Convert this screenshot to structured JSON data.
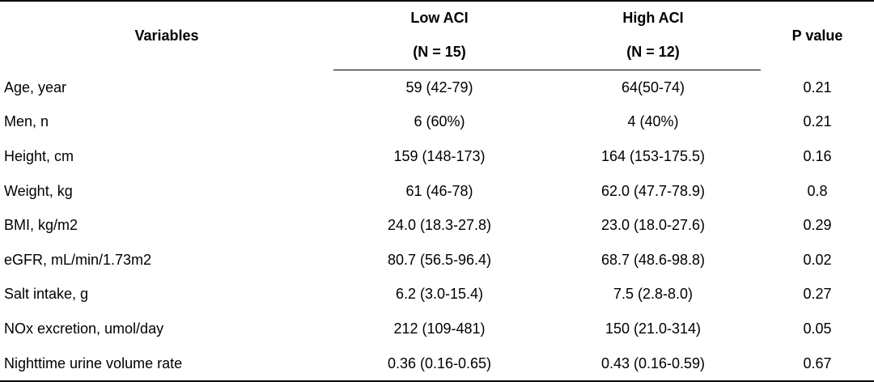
{
  "table": {
    "headers": {
      "variables": "Variables",
      "low_aci": "Low ACI",
      "low_aci_n": "(N = 15)",
      "high_aci": "High ACI",
      "high_aci_n": "(N = 12)",
      "p_value": "P value"
    },
    "rows": [
      {
        "variable": "Age, year",
        "low": "59 (42-79)",
        "high": "64(50-74)",
        "p": "0.21"
      },
      {
        "variable": "Men, n",
        "low": "6 (60%)",
        "high": "4 (40%)",
        "p": "0.21"
      },
      {
        "variable": "Height, cm",
        "low": "159 (148-173)",
        "high": "164 (153-175.5)",
        "p": "0.16"
      },
      {
        "variable": "Weight, kg",
        "low": "61 (46-78)",
        "high": "62.0 (47.7-78.9)",
        "p": "0.8"
      },
      {
        "variable": "BMI, kg/m2",
        "low": "24.0 (18.3-27.8)",
        "high": "23.0 (18.0-27.6)",
        "p": "0.29"
      },
      {
        "variable": "eGFR, mL/min/1.73m2",
        "low": "80.7 (56.5-96.4)",
        "high": "68.7 (48.6-98.8)",
        "p": "0.02"
      },
      {
        "variable": "Salt intake, g",
        "low": "6.2 (3.0-15.4)",
        "high": "7.5 (2.8-8.0)",
        "p": "0.27"
      },
      {
        "variable": "NOx excretion, umol/day",
        "low": "212 (109-481)",
        "high": "150 (21.0-314)",
        "p": "0.05"
      },
      {
        "variable": "Nighttime urine volume rate",
        "low": "0.36 (0.16-0.65)",
        "high": "0.43 (0.16-0.59)",
        "p": "0.67"
      }
    ]
  }
}
